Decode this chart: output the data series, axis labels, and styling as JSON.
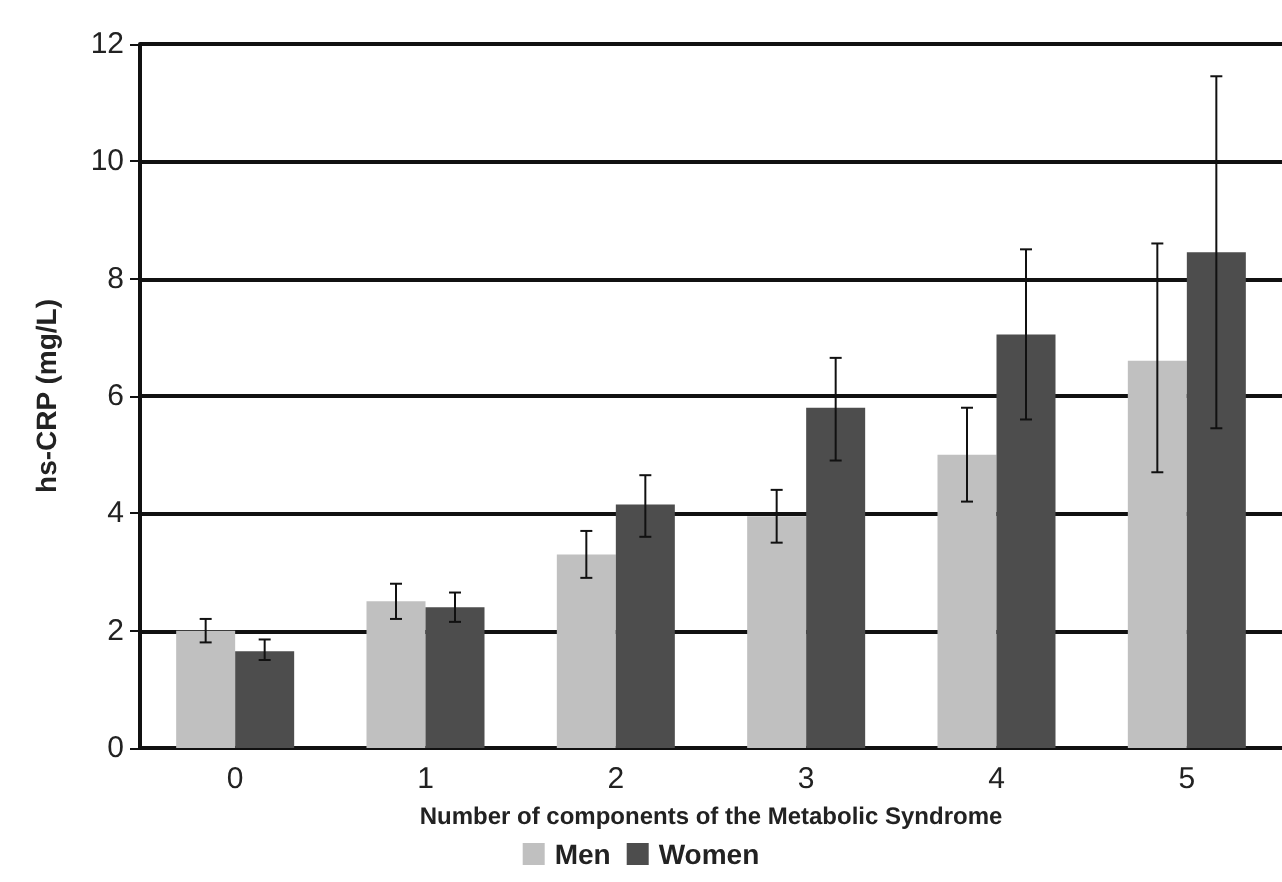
{
  "chart_data": {
    "type": "bar",
    "xlabel": "Number of components of the Metabolic Syndrome",
    "ylabel": "hs-CRP (mg/L)",
    "categories": [
      "0",
      "1",
      "2",
      "3",
      "4",
      "5"
    ],
    "series": [
      {
        "name": "Men",
        "color": "#c0c0c0",
        "values": [
          2.0,
          2.5,
          3.3,
          3.95,
          5.0,
          6.6
        ],
        "errors": [
          [
            1.8,
            2.2
          ],
          [
            2.2,
            2.8
          ],
          [
            2.9,
            3.7
          ],
          [
            3.5,
            4.4
          ],
          [
            4.2,
            5.8
          ],
          [
            4.7,
            8.6
          ]
        ]
      },
      {
        "name": "Women",
        "color": "#4d4d4d",
        "values": [
          1.65,
          2.4,
          4.15,
          5.8,
          7.05,
          8.45
        ],
        "errors": [
          [
            1.5,
            1.85
          ],
          [
            2.15,
            2.65
          ],
          [
            3.6,
            4.65
          ],
          [
            4.9,
            6.65
          ],
          [
            5.6,
            8.5
          ],
          [
            5.45,
            11.45
          ]
        ]
      }
    ],
    "ylim": [
      0,
      12
    ],
    "yticks": [
      0,
      2,
      4,
      6,
      8,
      10,
      12
    ],
    "grid": "y",
    "legend": "bottom"
  }
}
